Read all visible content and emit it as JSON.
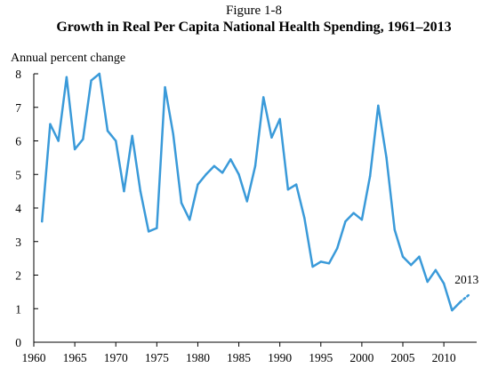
{
  "figure_label": "Figure 1-8",
  "chart_data": {
    "type": "line",
    "title": "Growth in Real Per Capita National Health Spending, 1961–2013",
    "ylabel": "Annual percent change",
    "xlabel": "",
    "xlim": [
      1960,
      2014
    ],
    "ylim": [
      0,
      8
    ],
    "x_ticks": [
      "1960",
      "1965",
      "1970",
      "1975",
      "1980",
      "1985",
      "1990",
      "1995",
      "2000",
      "2005",
      "2010"
    ],
    "y_ticks": [
      "0",
      "1",
      "2",
      "3",
      "4",
      "5",
      "6",
      "7",
      "8"
    ],
    "grid": false,
    "line_color": "#3a9ad9",
    "series": [
      {
        "x": [
          1961,
          1962,
          1963,
          1964,
          1965,
          1966,
          1967,
          1968,
          1969,
          1970,
          1971,
          1972,
          1973,
          1974,
          1975,
          1976,
          1977,
          1978,
          1979,
          1980,
          1981,
          1982,
          1983,
          1984,
          1985,
          1986,
          1987,
          1988,
          1989,
          1990,
          1991,
          1992,
          1993,
          1994,
          1995,
          1996,
          1997,
          1998,
          1999,
          2000,
          2001,
          2002,
          2003,
          2004,
          2005,
          2006,
          2007,
          2008,
          2009,
          2010,
          2011,
          2012
        ],
        "values": [
          3.6,
          6.5,
          6.0,
          7.9,
          5.75,
          6.05,
          7.8,
          8.0,
          6.3,
          6.0,
          4.5,
          6.15,
          4.5,
          3.3,
          3.4,
          7.6,
          6.2,
          4.15,
          3.65,
          4.7,
          5.0,
          5.25,
          5.05,
          5.45,
          5.0,
          4.2,
          5.25,
          7.3,
          6.1,
          6.65,
          4.55,
          4.7,
          3.7,
          2.25,
          2.4,
          2.35,
          2.8,
          3.6,
          3.85,
          3.65,
          4.95,
          7.05,
          5.5,
          3.35,
          2.55,
          2.3,
          2.55,
          1.8,
          2.15,
          1.75,
          0.95,
          1.2
        ]
      },
      {
        "x": [
          2012,
          2013
        ],
        "values": [
          1.2,
          1.4
        ],
        "style": "dotted"
      }
    ],
    "annotations": [
      {
        "text": "2013",
        "x": 2013,
        "y": 1.4
      }
    ]
  }
}
